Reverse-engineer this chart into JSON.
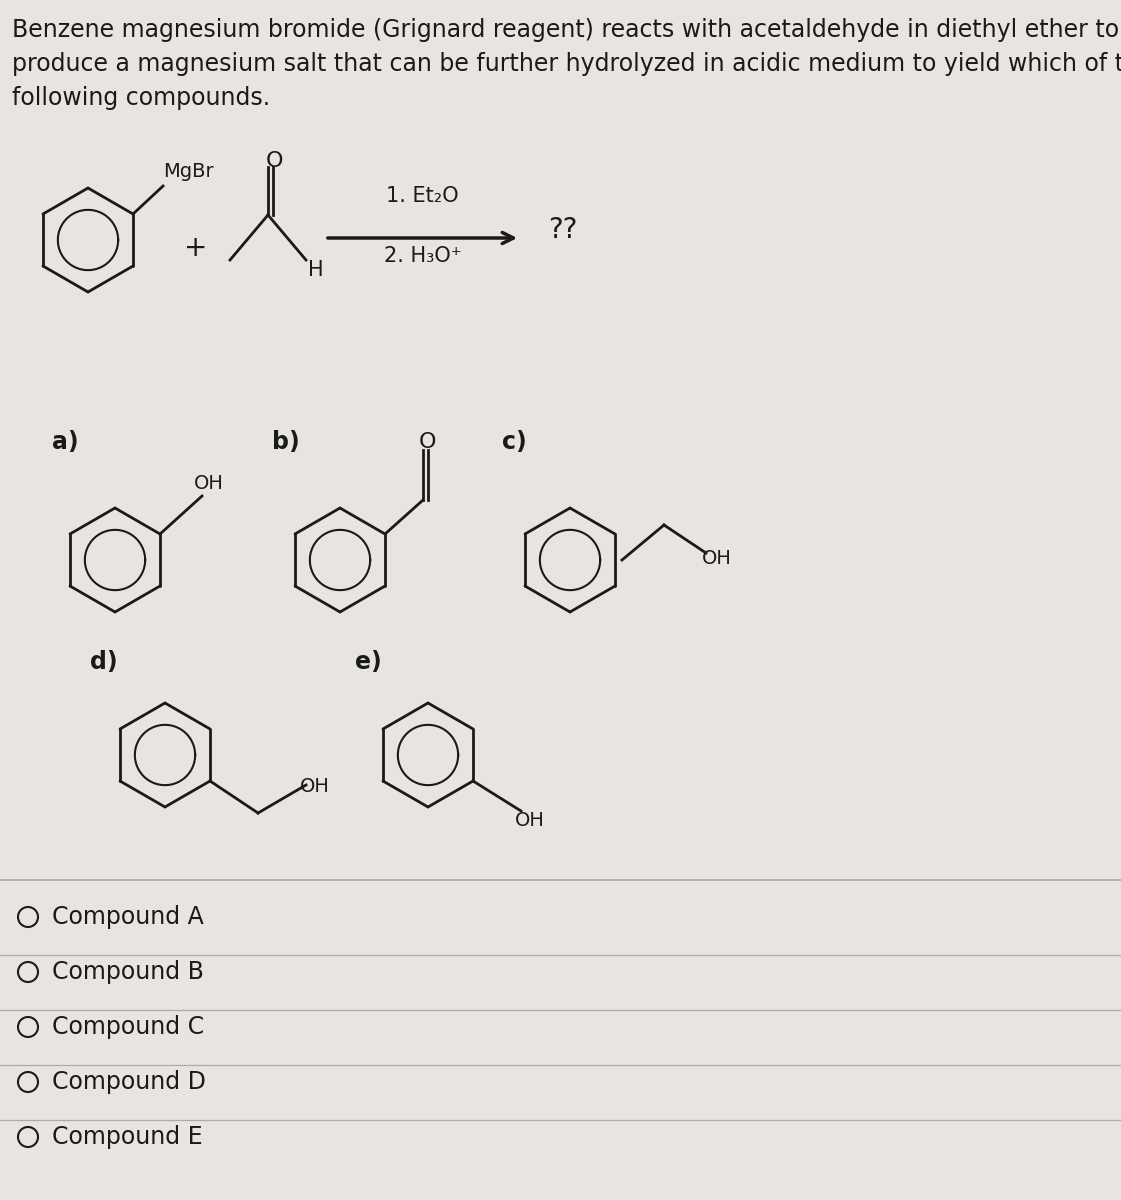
{
  "background_color": "#e8e5e1",
  "text_color": "#1a1a1a",
  "question_text_line1": "Benzene magnesium bromide (Grignard reagent) reacts with acetaldehyde in diethyl ether to",
  "question_text_line2": "produce a magnesium salt that can be further hydrolyzed in acidic medium to yield which of the",
  "question_text_line3": "following compounds.",
  "reaction_conditions_line1": "1. Et₂O",
  "reaction_conditions_line2": "2. H₃O⁺",
  "question_mark": "??",
  "label_a": "a)",
  "label_b": "b)",
  "label_c": "c)",
  "label_d": "d)",
  "label_e": "e)",
  "oh_label": "OH",
  "o_label": "O",
  "mgbr_label": "MgBr",
  "h_label": "H",
  "plus_label": "+",
  "compounds": [
    "Compound A",
    "Compound B",
    "Compound C",
    "Compound D",
    "Compound E"
  ],
  "font_size_question": 17,
  "font_size_label": 17,
  "font_size_compound": 17
}
